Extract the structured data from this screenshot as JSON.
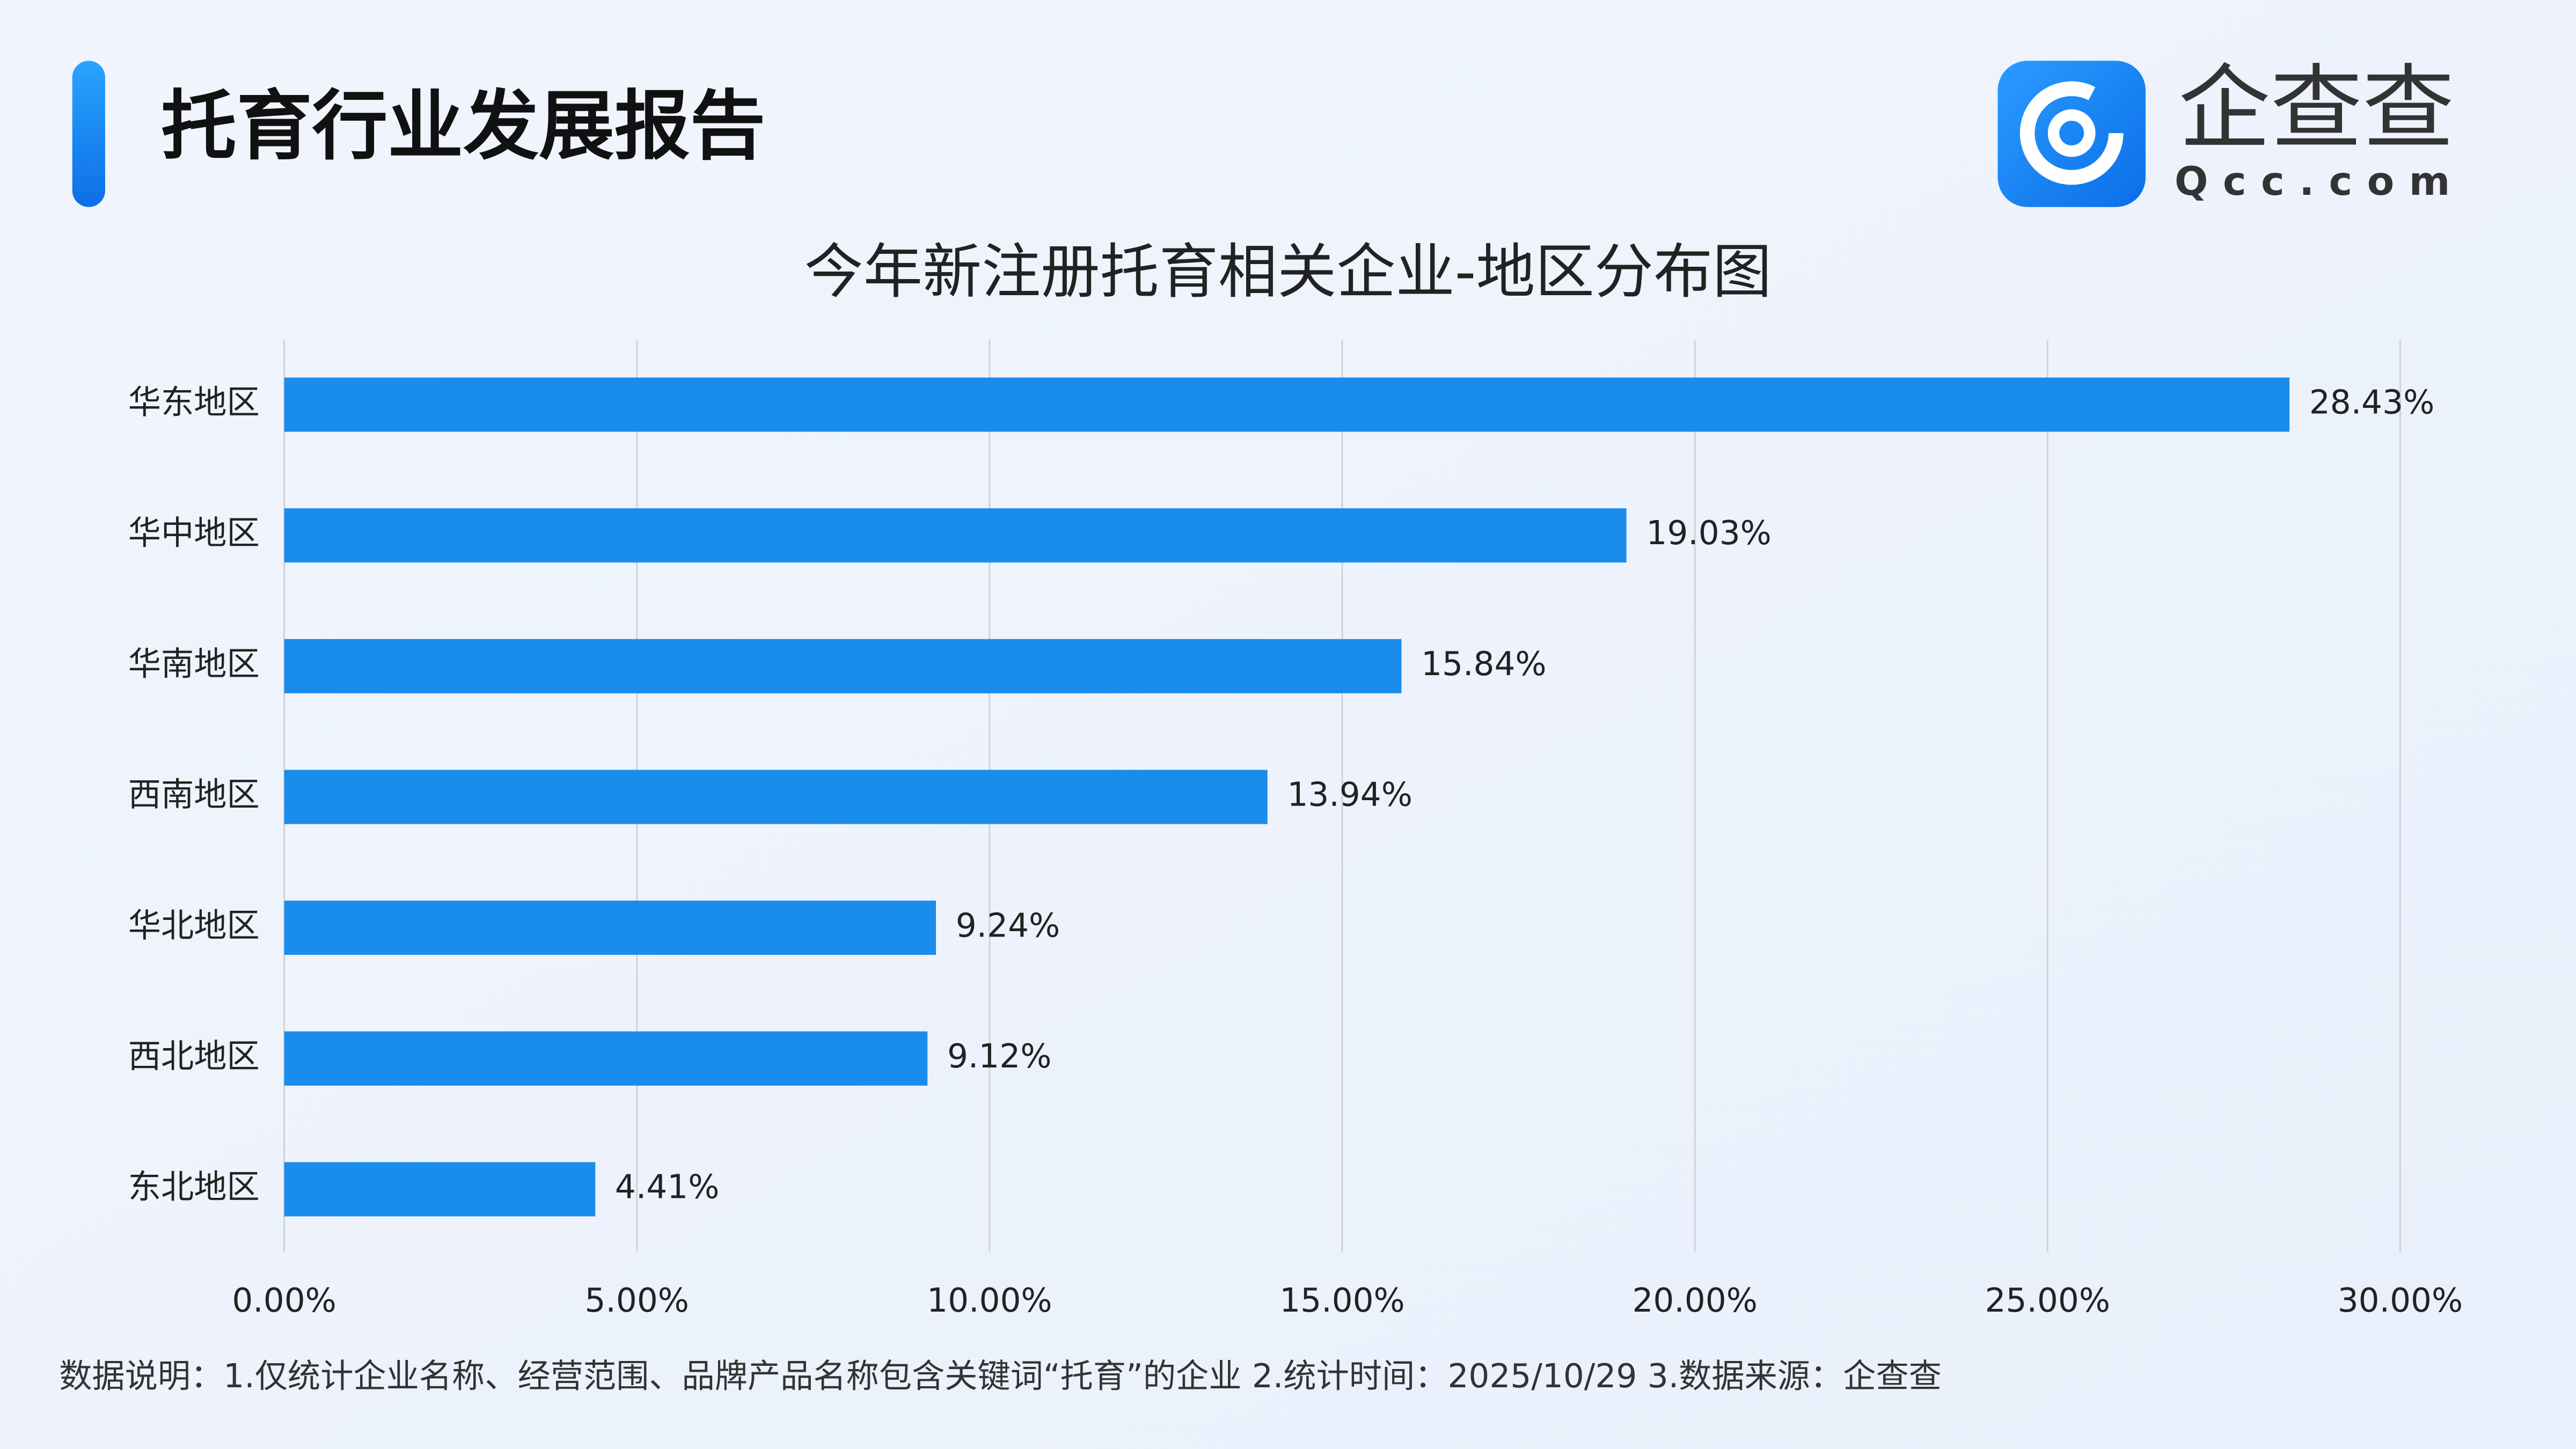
{
  "header": {
    "title": "托育行业发展报告",
    "logo_text": "企查查",
    "logo_domain": "Qcc.com"
  },
  "chart_data": {
    "type": "hbar",
    "title": "今年新注册托育相关企业-地区分布图",
    "categories": [
      "华东地区",
      "华中地区",
      "华南地区",
      "西南地区",
      "华北地区",
      "西北地区",
      "东北地区"
    ],
    "values": [
      28.43,
      19.03,
      15.84,
      13.94,
      9.24,
      9.12,
      4.41
    ],
    "value_labels": [
      "28.43%",
      "19.03%",
      "15.84%",
      "13.94%",
      "9.24%",
      "9.12%",
      "4.41%"
    ],
    "color": "#1a8ceb",
    "xlim": [
      0,
      30
    ],
    "xticks": [
      {
        "value": 0,
        "label": "0.00%"
      },
      {
        "value": 5,
        "label": "5.00%"
      },
      {
        "value": 10,
        "label": "10.00%"
      },
      {
        "value": 15,
        "label": "15.00%"
      },
      {
        "value": 20,
        "label": "20.00%"
      },
      {
        "value": 25,
        "label": "25.00%"
      },
      {
        "value": 30,
        "label": "30.00%"
      }
    ],
    "grid": true,
    "footnote": "数据说明：1.仅统计企业名称、经营范围、品牌产品名称包含关键词“托育”的企业   2.统计时间：2025/10/29   3.数据来源：企查查"
  }
}
